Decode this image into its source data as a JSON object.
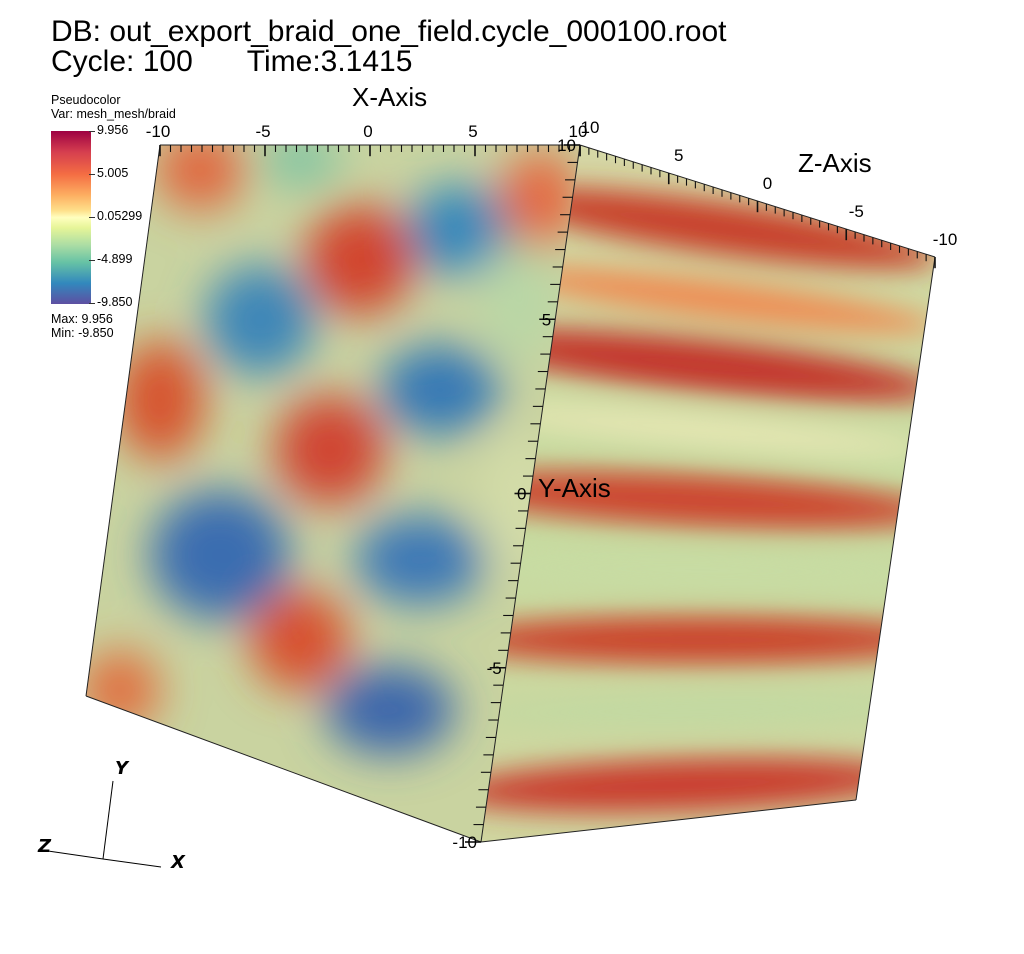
{
  "header": {
    "db_line": "DB: out_export_braid_one_field.cycle_000100.root",
    "cycle_label": "Cycle:",
    "cycle_value": "100",
    "time_label": "Time:",
    "time_value": "3.1415"
  },
  "legend": {
    "plot_type": "Pseudocolor",
    "variable": "Var: mesh_mesh/braid",
    "ticks": [
      "9.956",
      "5.005",
      "0.05299",
      "-4.899",
      "-9.850"
    ],
    "max_label": "Max:  9.956",
    "min_label": "Min: -9.850",
    "colormap": [
      "#9e0142",
      "#d53e4f",
      "#f46d43",
      "#fdae61",
      "#fee08b",
      "#ffffbf",
      "#e6f598",
      "#abdda4",
      "#66c2a5",
      "#3288bd",
      "#5e4fa2"
    ]
  },
  "chart_data": {
    "type": "heatmap",
    "plot": "Pseudocolor",
    "variable": "mesh_mesh/braid",
    "value_range": [
      -9.85,
      9.956
    ],
    "colorbar_ticks": [
      9.956,
      5.005,
      0.05299,
      -4.899,
      -9.85
    ],
    "axes": {
      "x": {
        "title": "X-Axis",
        "range": [
          -10,
          10
        ],
        "ticks": [
          -10,
          -5,
          0,
          5,
          10
        ],
        "tick_labels": [
          "-10",
          "-5",
          "0",
          "5",
          "10"
        ]
      },
      "y": {
        "title": "Y-Axis",
        "range": [
          -10,
          10
        ],
        "ticks": [
          -10,
          -5,
          0,
          5,
          10
        ],
        "tick_labels": [
          "-10",
          "-5",
          "0",
          "5",
          "10"
        ]
      },
      "z": {
        "title": "Z-Axis",
        "range": [
          -10,
          10
        ],
        "ticks": [
          10,
          5,
          0,
          -5,
          -10
        ],
        "tick_labels": [
          "10",
          "5",
          "0",
          "-5",
          "-10"
        ]
      }
    },
    "triad": {
      "x": "X",
      "y": "Y",
      "z": "Z"
    }
  }
}
